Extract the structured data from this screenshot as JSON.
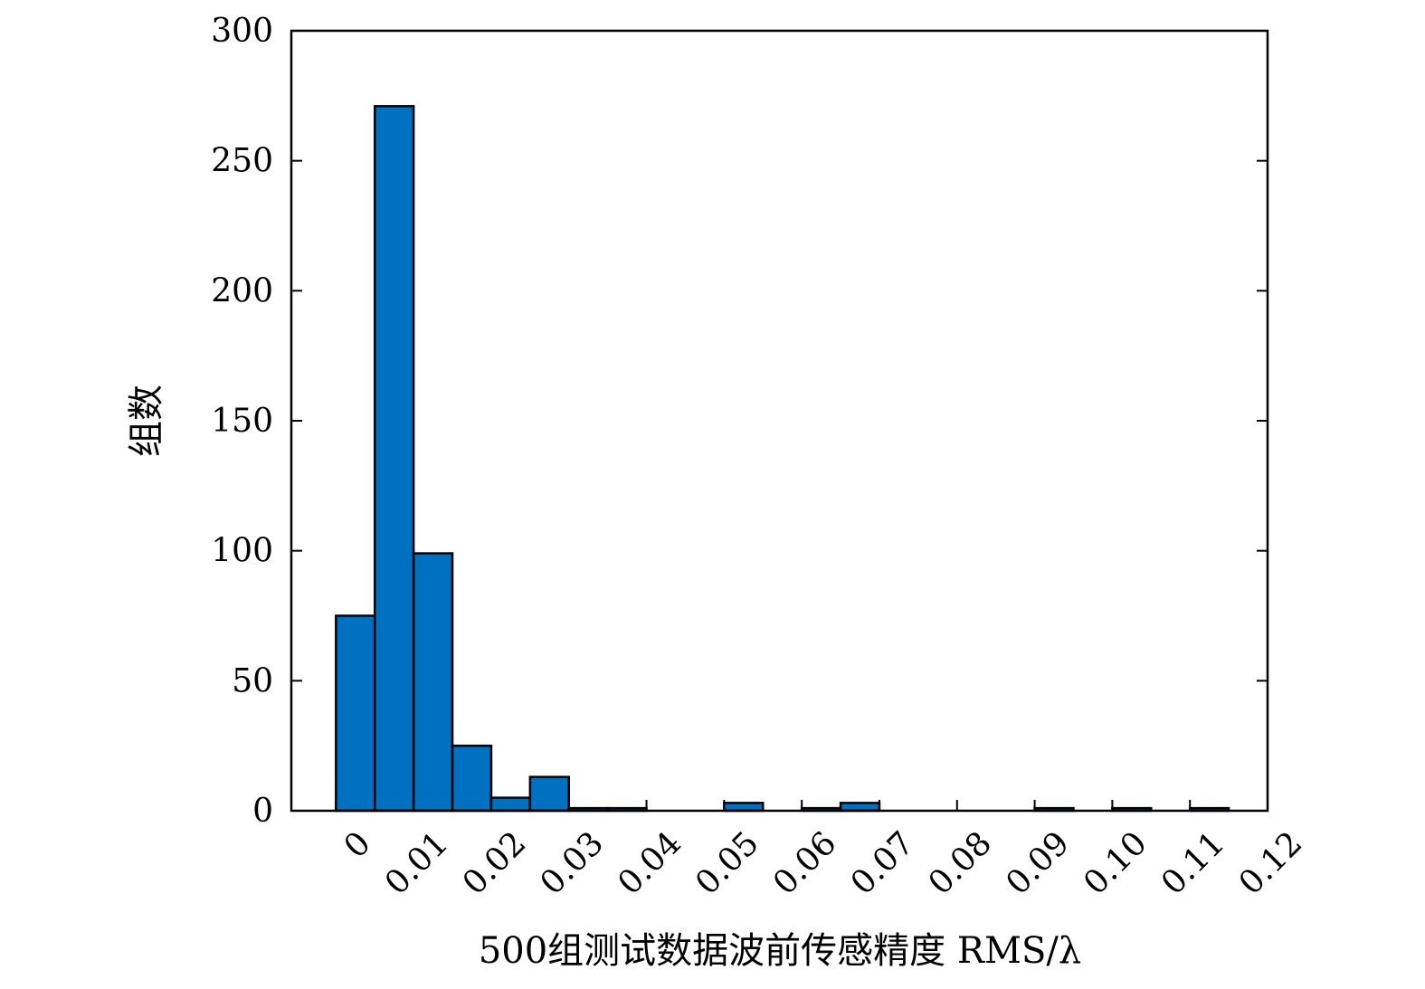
{
  "chart_data": {
    "type": "bar",
    "xlabel": "500组测试数据波前传感精度 RMS/λ",
    "ylabel": "组数",
    "xlim": [
      -0.00575,
      0.12
    ],
    "ylim": [
      0,
      300
    ],
    "x_ticks": [
      0,
      0.01,
      0.02,
      0.03,
      0.04,
      0.05,
      0.06,
      0.07,
      0.08,
      0.09,
      0.1,
      0.11,
      0.12
    ],
    "x_tick_labels": [
      "0",
      "0.01",
      "0.02",
      "0.03",
      "0.04",
      "0.05",
      "0.06",
      "0.07",
      "0.08",
      "0.09",
      "0.10",
      "0.11",
      "0.12"
    ],
    "y_ticks": [
      0,
      50,
      100,
      150,
      200,
      250,
      300
    ],
    "y_tick_labels": [
      "0",
      "50",
      "100",
      "150",
      "200",
      "250",
      "300"
    ],
    "bin_width": 0.005,
    "bins": [
      {
        "x0": 0.0,
        "x1": 0.005,
        "count": 75
      },
      {
        "x0": 0.005,
        "x1": 0.01,
        "count": 271
      },
      {
        "x0": 0.01,
        "x1": 0.015,
        "count": 99
      },
      {
        "x0": 0.015,
        "x1": 0.02,
        "count": 25
      },
      {
        "x0": 0.02,
        "x1": 0.025,
        "count": 5
      },
      {
        "x0": 0.025,
        "x1": 0.03,
        "count": 13
      },
      {
        "x0": 0.03,
        "x1": 0.035,
        "count": 1
      },
      {
        "x0": 0.035,
        "x1": 0.04,
        "count": 1
      },
      {
        "x0": 0.04,
        "x1": 0.045,
        "count": 0
      },
      {
        "x0": 0.045,
        "x1": 0.05,
        "count": 0
      },
      {
        "x0": 0.05,
        "x1": 0.055,
        "count": 3
      },
      {
        "x0": 0.055,
        "x1": 0.06,
        "count": 0
      },
      {
        "x0": 0.06,
        "x1": 0.065,
        "count": 1
      },
      {
        "x0": 0.065,
        "x1": 0.07,
        "count": 3
      },
      {
        "x0": 0.07,
        "x1": 0.075,
        "count": 0
      },
      {
        "x0": 0.075,
        "x1": 0.08,
        "count": 0
      },
      {
        "x0": 0.08,
        "x1": 0.085,
        "count": 0
      },
      {
        "x0": 0.085,
        "x1": 0.09,
        "count": 0
      },
      {
        "x0": 0.09,
        "x1": 0.095,
        "count": 1
      },
      {
        "x0": 0.095,
        "x1": 0.1,
        "count": 0
      },
      {
        "x0": 0.1,
        "x1": 0.105,
        "count": 1
      },
      {
        "x0": 0.105,
        "x1": 0.11,
        "count": 0
      },
      {
        "x0": 0.11,
        "x1": 0.115,
        "count": 1
      }
    ],
    "bar_color": "#0070c0",
    "bar_edge_color": "#000000",
    "grid": false,
    "legend": "none"
  }
}
